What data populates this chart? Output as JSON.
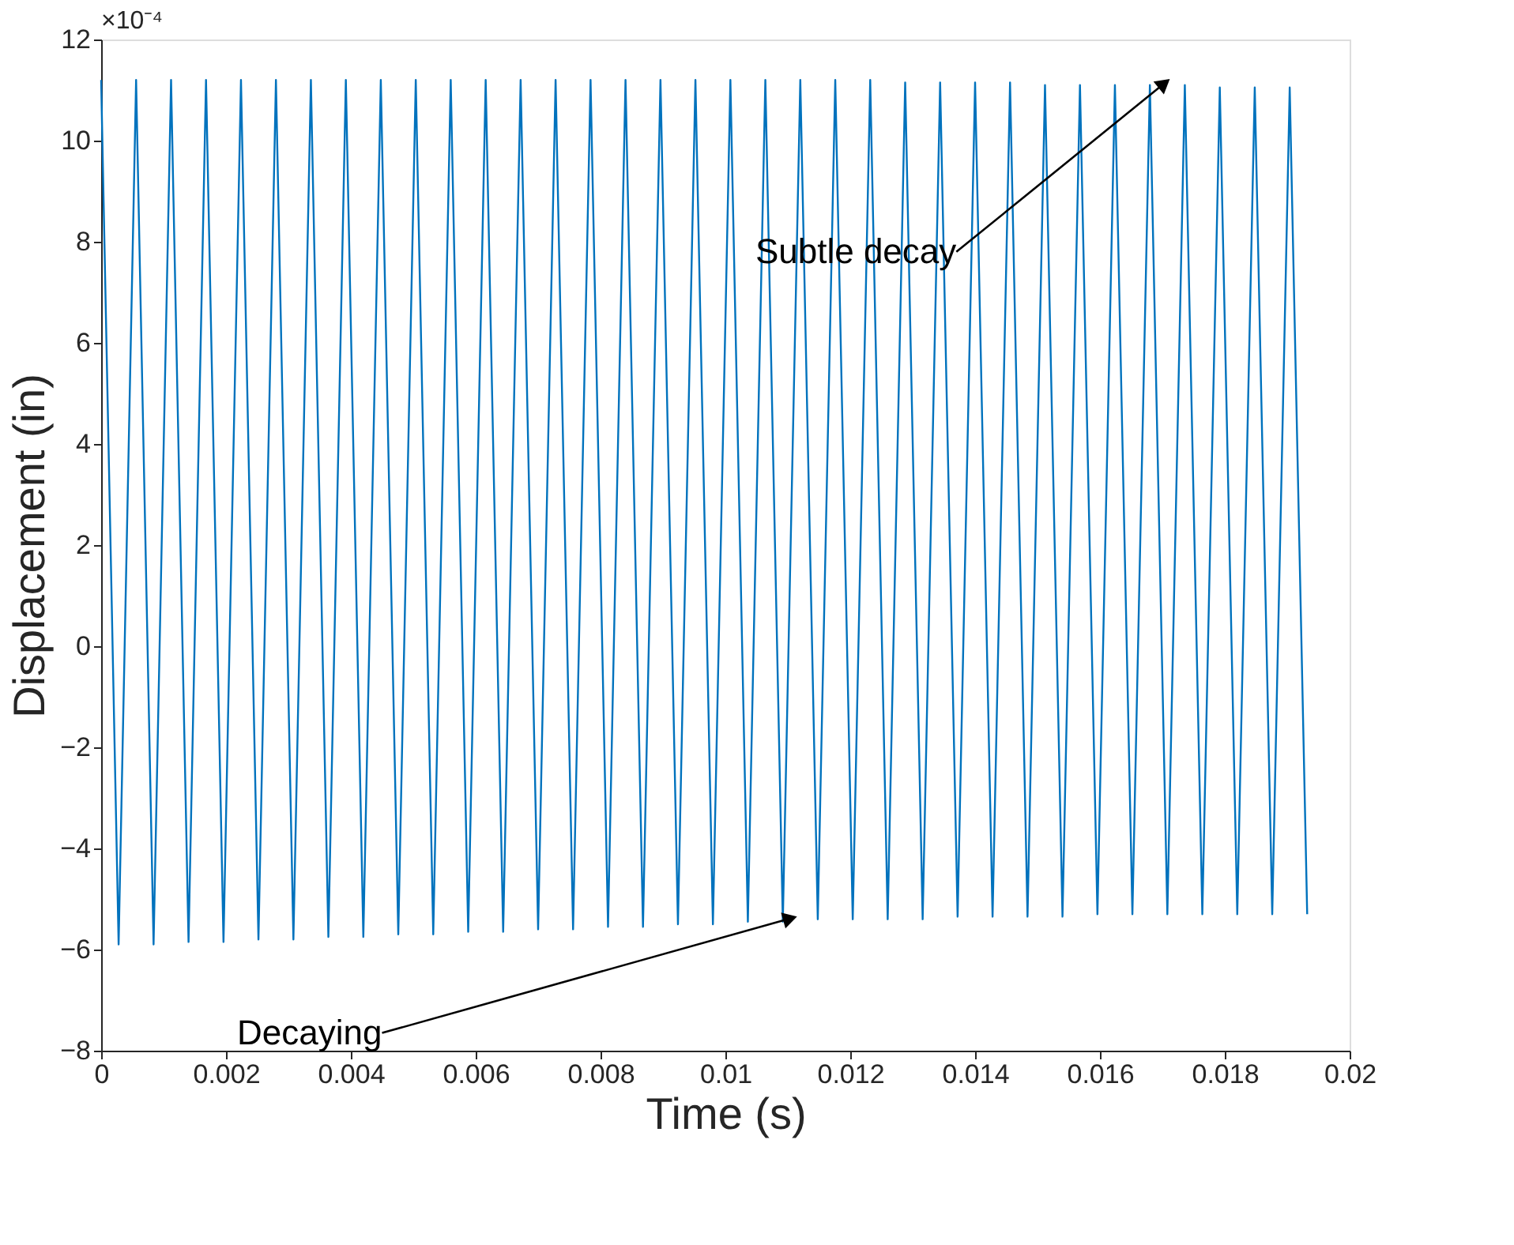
{
  "chart_data": {
    "type": "line",
    "xlabel": "Time (s)",
    "ylabel": "Displacement (in)",
    "annotations": [
      "×10⁻⁴",
      {
        "text": "Subtle decay",
        "x": 0.017,
        "y": 11.1
      },
      {
        "text": "Decaying",
        "x": 0.011,
        "y": -5.4
      }
    ],
    "x": [
      0,
      0.00028,
      0.00056,
      0.00084,
      0.00112,
      0.0014,
      0.00168,
      0.00196,
      0.00224,
      0.00252,
      0.0028,
      0.00308,
      0.00336,
      0.00364,
      0.00392,
      0.0042,
      0.00448,
      0.00476,
      0.00504,
      0.00532,
      0.0056,
      0.00588,
      0.00616,
      0.00644,
      0.00672,
      0.007,
      0.00728,
      0.00756,
      0.00784,
      0.00812,
      0.0084,
      0.00868,
      0.00896,
      0.00924,
      0.00952,
      0.0098,
      0.01008,
      0.01036,
      0.01064,
      0.01092,
      0.0112,
      0.01148,
      0.01176,
      0.01204,
      0.01232,
      0.0126,
      0.01288,
      0.01316,
      0.01344,
      0.01372,
      0.014,
      0.01428,
      0.01456,
      0.01484,
      0.01512,
      0.0154,
      0.01568,
      0.01596,
      0.01624,
      0.01652,
      0.0168,
      0.01708,
      0.01736,
      0.01764,
      0.01792,
      0.0182,
      0.01848,
      0.01876,
      0.01904,
      0.01932
    ],
    "series": [
      {
        "color": "#0072bd",
        "values": [
          11.2,
          -5.9,
          11.2,
          -5.9,
          11.2,
          -5.85,
          11.2,
          -5.85,
          11.2,
          -5.8,
          11.2,
          -5.8,
          11.2,
          -5.75,
          11.2,
          -5.75,
          11.2,
          -5.7,
          11.2,
          -5.7,
          11.2,
          -5.65,
          11.2,
          -5.65,
          11.2,
          -5.6,
          11.2,
          -5.6,
          11.2,
          -5.55,
          11.2,
          -5.55,
          11.2,
          -5.5,
          11.2,
          -5.5,
          11.2,
          -5.45,
          11.2,
          -5.45,
          11.2,
          -5.4,
          11.2,
          -5.4,
          11.2,
          -5.4,
          11.15,
          -5.4,
          11.15,
          -5.35,
          11.15,
          -5.35,
          11.15,
          -5.35,
          11.1,
          -5.35,
          11.1,
          -5.3,
          11.1,
          -5.3,
          11.1,
          -5.3,
          11.1,
          -5.3,
          11.05,
          -5.3,
          11.05,
          -5.3,
          11.05,
          -5.3
        ]
      }
    ],
    "xlim": [
      0,
      0.02
    ],
    "xticks": [
      0,
      0.002,
      0.004,
      0.006,
      0.008,
      0.01,
      0.012,
      0.014,
      0.016,
      0.018,
      0.02
    ],
    "ylim": [
      -8,
      12
    ],
    "yticks": [
      -8,
      -6,
      -4,
      -2,
      0,
      2,
      4,
      6,
      8,
      10,
      12
    ],
    "grid": false,
    "marker": "none",
    "line_style": "solid"
  }
}
